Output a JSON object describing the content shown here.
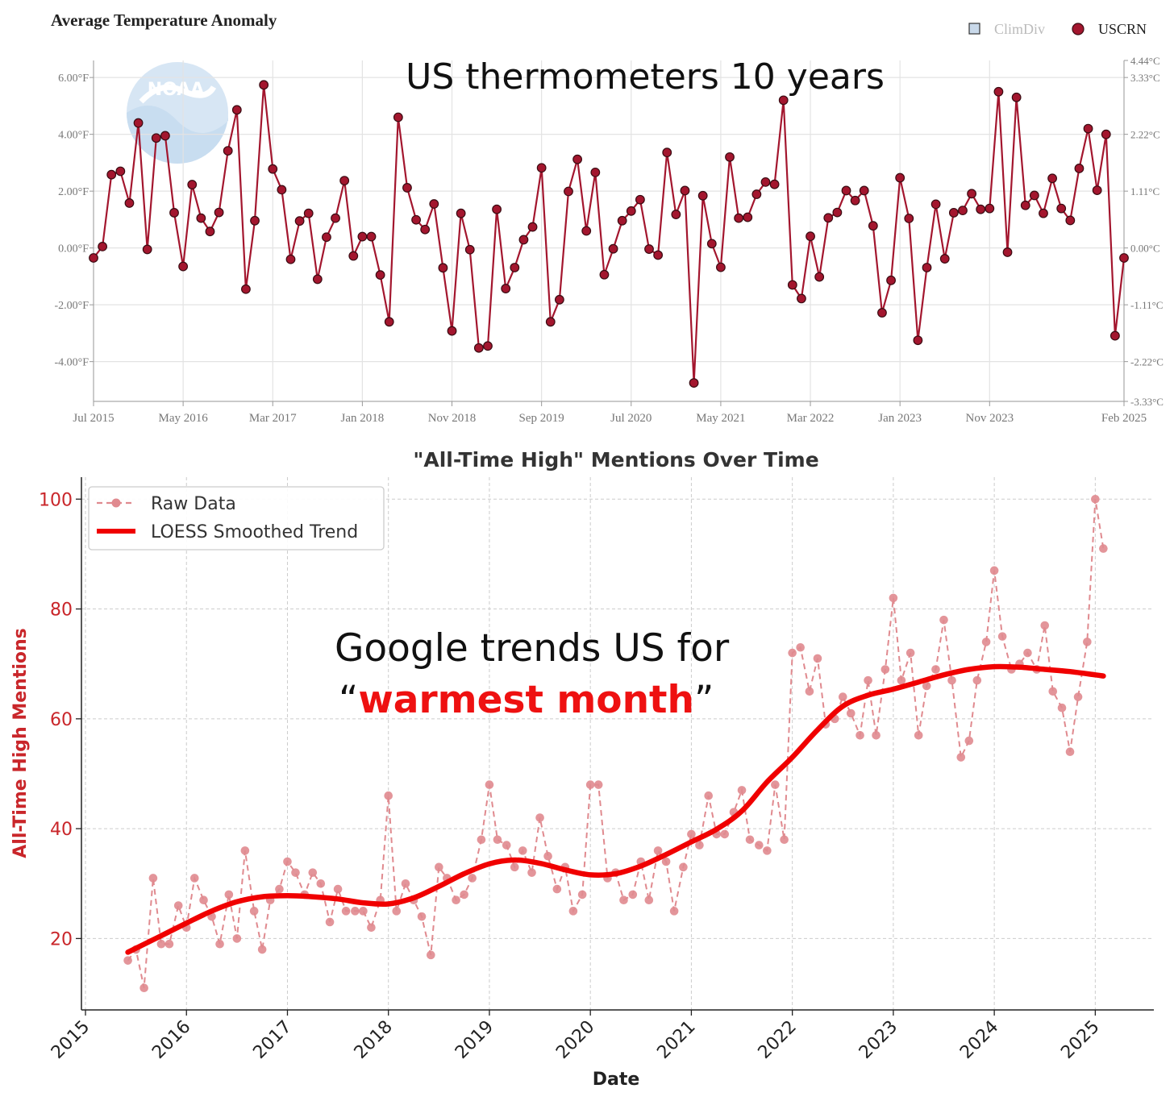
{
  "top_chart": {
    "title": "Average Temperature Anomaly",
    "overlay_text": "US thermometers 10 years",
    "logo_text": "NOAA",
    "legend": [
      {
        "label": "ClimDiv",
        "icon": "square-marker-icon",
        "color": "#c9d9ea"
      },
      {
        "label": "USCRN",
        "icon": "circle-marker-icon",
        "color": "#a3162e"
      }
    ],
    "colors": {
      "line": "#a3162e",
      "marker": "#a3162e",
      "logo": "#cfe0f1"
    }
  },
  "bottom_chart": {
    "title": "\"All-Time High\" Mentions Over Time",
    "overlay_line1": "Google trends US for",
    "overlay_quote_open": "“",
    "overlay_highlight": "warmest month",
    "overlay_quote_close": "”",
    "colors": {
      "raw": "#e08a8f",
      "trend": "#f00000",
      "axis_label": "#c9262a",
      "overlay_highlight": "#ee1111"
    }
  },
  "chart_data": [
    {
      "type": "line",
      "title": "Average Temperature Anomaly",
      "x_tick_labels": [
        "Jul 2015",
        "May 2016",
        "Mar 2017",
        "Jan 2018",
        "Nov 2018",
        "Sep 2019",
        "Jul 2020",
        "May 2021",
        "Mar 2022",
        "Jan 2023",
        "Nov 2023",
        "Feb 2025"
      ],
      "x_tick_indices": [
        0,
        10,
        20,
        30,
        40,
        50,
        60,
        70,
        80,
        90,
        100,
        115
      ],
      "y_left_ticks": [
        6,
        4,
        2,
        0,
        -2,
        -4
      ],
      "y_left_tick_labels": [
        "6.00°F",
        "4.00°F",
        "2.00°F",
        "0.00°F",
        "-2.00°F",
        "-4.00°F"
      ],
      "y_right_tick_labels": [
        "4.44°C",
        "3.33°C",
        "2.22°C",
        "1.11°C",
        "0.00°C",
        "-1.11°C",
        "-2.22°C",
        "-3.33°C"
      ],
      "y_right_ticks_f": [
        8,
        6,
        4,
        2,
        0,
        -2,
        -4,
        -6
      ],
      "ylim_f": [
        -5.4,
        6.6
      ],
      "unit": "°F",
      "grid": true,
      "legend_position": "top-right",
      "series": [
        {
          "name": "USCRN",
          "values": [
            -0.35,
            0.05,
            2.58,
            2.7,
            1.58,
            4.4,
            -0.05,
            3.87,
            3.95,
            1.24,
            -0.65,
            2.23,
            1.05,
            0.58,
            1.25,
            3.42,
            4.86,
            -1.45,
            0.96,
            5.74,
            2.78,
            2.05,
            -0.4,
            0.95,
            1.22,
            -1.1,
            0.38,
            1.05,
            2.37,
            -0.28,
            0.4,
            0.4,
            -0.95,
            -2.6,
            4.6,
            2.12,
            0.99,
            0.65,
            1.55,
            -0.7,
            -2.92,
            1.22,
            -0.06,
            -3.52,
            -3.45,
            1.36,
            -1.43,
            -0.69,
            0.29,
            0.74,
            2.82,
            -2.6,
            -1.82,
            1.99,
            3.12,
            0.6,
            2.66,
            -0.94,
            -0.03,
            0.96,
            1.3,
            1.7,
            -0.04,
            -0.25,
            3.36,
            1.18,
            2.02,
            -4.75,
            1.84,
            0.15,
            -0.68,
            3.2,
            1.05,
            1.08,
            1.89,
            2.32,
            2.24,
            5.2,
            -1.3,
            -1.78,
            0.41,
            -1.02,
            1.06,
            1.25,
            2.02,
            1.67,
            2.02,
            0.78,
            -2.28,
            -1.14,
            2.47,
            1.04,
            -3.25,
            -0.69,
            1.54,
            -0.38,
            1.24,
            1.32,
            1.91,
            1.36,
            1.39,
            5.5,
            -0.15,
            5.3,
            1.5,
            1.85,
            1.22,
            2.45,
            1.39,
            0.97,
            2.8,
            4.2,
            2.03,
            4.0,
            -3.09,
            -0.35
          ]
        }
      ]
    },
    {
      "type": "line",
      "title": "\"All-Time High\" Mentions Over Time",
      "xlabel": "Date",
      "ylabel": "All-Time High Mentions",
      "x_tick_labels": [
        "2015",
        "2016",
        "2017",
        "2018",
        "2019",
        "2020",
        "2021",
        "2022",
        "2023",
        "2024",
        "2025"
      ],
      "y_ticks": [
        20,
        40,
        60,
        80,
        100
      ],
      "ylim": [
        7,
        104
      ],
      "xlim": [
        2014.96,
        2025.58
      ],
      "grid": true,
      "legend_position": "top-left",
      "x": [
        2015.42,
        2015.5,
        2015.58,
        2015.67,
        2015.75,
        2015.83,
        2015.92,
        2016.0,
        2016.08,
        2016.17,
        2016.25,
        2016.33,
        2016.42,
        2016.5,
        2016.58,
        2016.67,
        2016.75,
        2016.83,
        2016.92,
        2017.0,
        2017.08,
        2017.17,
        2017.25,
        2017.33,
        2017.42,
        2017.5,
        2017.58,
        2017.67,
        2017.75,
        2017.83,
        2017.92,
        2018.0,
        2018.08,
        2018.17,
        2018.25,
        2018.33,
        2018.42,
        2018.5,
        2018.58,
        2018.67,
        2018.75,
        2018.83,
        2018.92,
        2019.0,
        2019.08,
        2019.17,
        2019.25,
        2019.33,
        2019.42,
        2019.5,
        2019.58,
        2019.67,
        2019.75,
        2019.83,
        2019.92,
        2020.0,
        2020.08,
        2020.17,
        2020.25,
        2020.33,
        2020.42,
        2020.5,
        2020.58,
        2020.67,
        2020.75,
        2020.83,
        2020.92,
        2021.0,
        2021.08,
        2021.17,
        2021.25,
        2021.33,
        2021.42,
        2021.5,
        2021.58,
        2021.67,
        2021.75,
        2021.83,
        2021.92,
        2022.0,
        2022.08,
        2022.17,
        2022.25,
        2022.33,
        2022.42,
        2022.5,
        2022.58,
        2022.67,
        2022.75,
        2022.83,
        2022.92,
        2023.0,
        2023.08,
        2023.17,
        2023.25,
        2023.33,
        2023.42,
        2023.5,
        2023.58,
        2023.67,
        2023.75,
        2023.83,
        2023.92,
        2024.0,
        2024.08,
        2024.17,
        2024.25,
        2024.33,
        2024.42,
        2024.5,
        2024.58,
        2024.67,
        2024.75,
        2024.83,
        2024.92,
        2025.0,
        2025.08
      ],
      "series": [
        {
          "name": "Raw Data",
          "style": "dashed line with circle markers",
          "values": [
            16,
            18,
            11,
            31,
            19,
            19,
            26,
            22,
            31,
            27,
            24,
            19,
            28,
            20,
            36,
            25,
            18,
            27,
            29,
            34,
            32,
            28,
            32,
            30,
            23,
            29,
            25,
            25,
            25,
            22,
            27,
            46,
            25,
            30,
            27,
            24,
            17,
            33,
            31,
            27,
            28,
            31,
            38,
            48,
            38,
            37,
            33,
            36,
            32,
            42,
            35,
            29,
            33,
            25,
            28,
            48,
            48,
            31,
            32,
            27,
            28,
            34,
            27,
            36,
            34,
            25,
            33,
            39,
            37,
            46,
            39,
            39,
            43,
            47,
            38,
            37,
            36,
            48,
            38,
            72,
            73,
            65,
            71,
            59,
            60,
            64,
            61,
            57,
            67,
            57,
            69,
            82,
            67,
            72,
            57,
            66,
            69,
            78,
            67,
            53,
            56,
            67,
            74,
            87,
            75,
            69,
            70,
            72,
            69,
            77,
            65,
            62,
            54,
            64,
            74,
            100,
            91
          ]
        },
        {
          "name": "LOESS Smoothed Trend",
          "style": "thick solid line",
          "x": [
            2015.42,
            2015.75,
            2016.0,
            2016.25,
            2016.5,
            2016.75,
            2017.0,
            2017.25,
            2017.5,
            2017.75,
            2018.0,
            2018.25,
            2018.5,
            2018.75,
            2019.0,
            2019.25,
            2019.5,
            2019.75,
            2020.0,
            2020.25,
            2020.5,
            2020.75,
            2021.0,
            2021.25,
            2021.5,
            2021.75,
            2022.0,
            2022.25,
            2022.5,
            2022.75,
            2023.0,
            2023.25,
            2023.5,
            2023.75,
            2024.0,
            2024.25,
            2024.5,
            2024.75,
            2025.0,
            2025.08
          ],
          "values": [
            17.5,
            20.5,
            22.8,
            25,
            26.7,
            27.6,
            27.8,
            27.6,
            27.2,
            26.5,
            26.3,
            27.4,
            29.5,
            31.8,
            33.6,
            34.3,
            33.7,
            32.5,
            31.6,
            31.8,
            33.2,
            35.3,
            37.6,
            39.9,
            43.2,
            48.5,
            53,
            58,
            62.3,
            64.3,
            65.4,
            66.7,
            68,
            69,
            69.5,
            69.4,
            69,
            68.6,
            68,
            67.8
          ]
        }
      ]
    }
  ]
}
